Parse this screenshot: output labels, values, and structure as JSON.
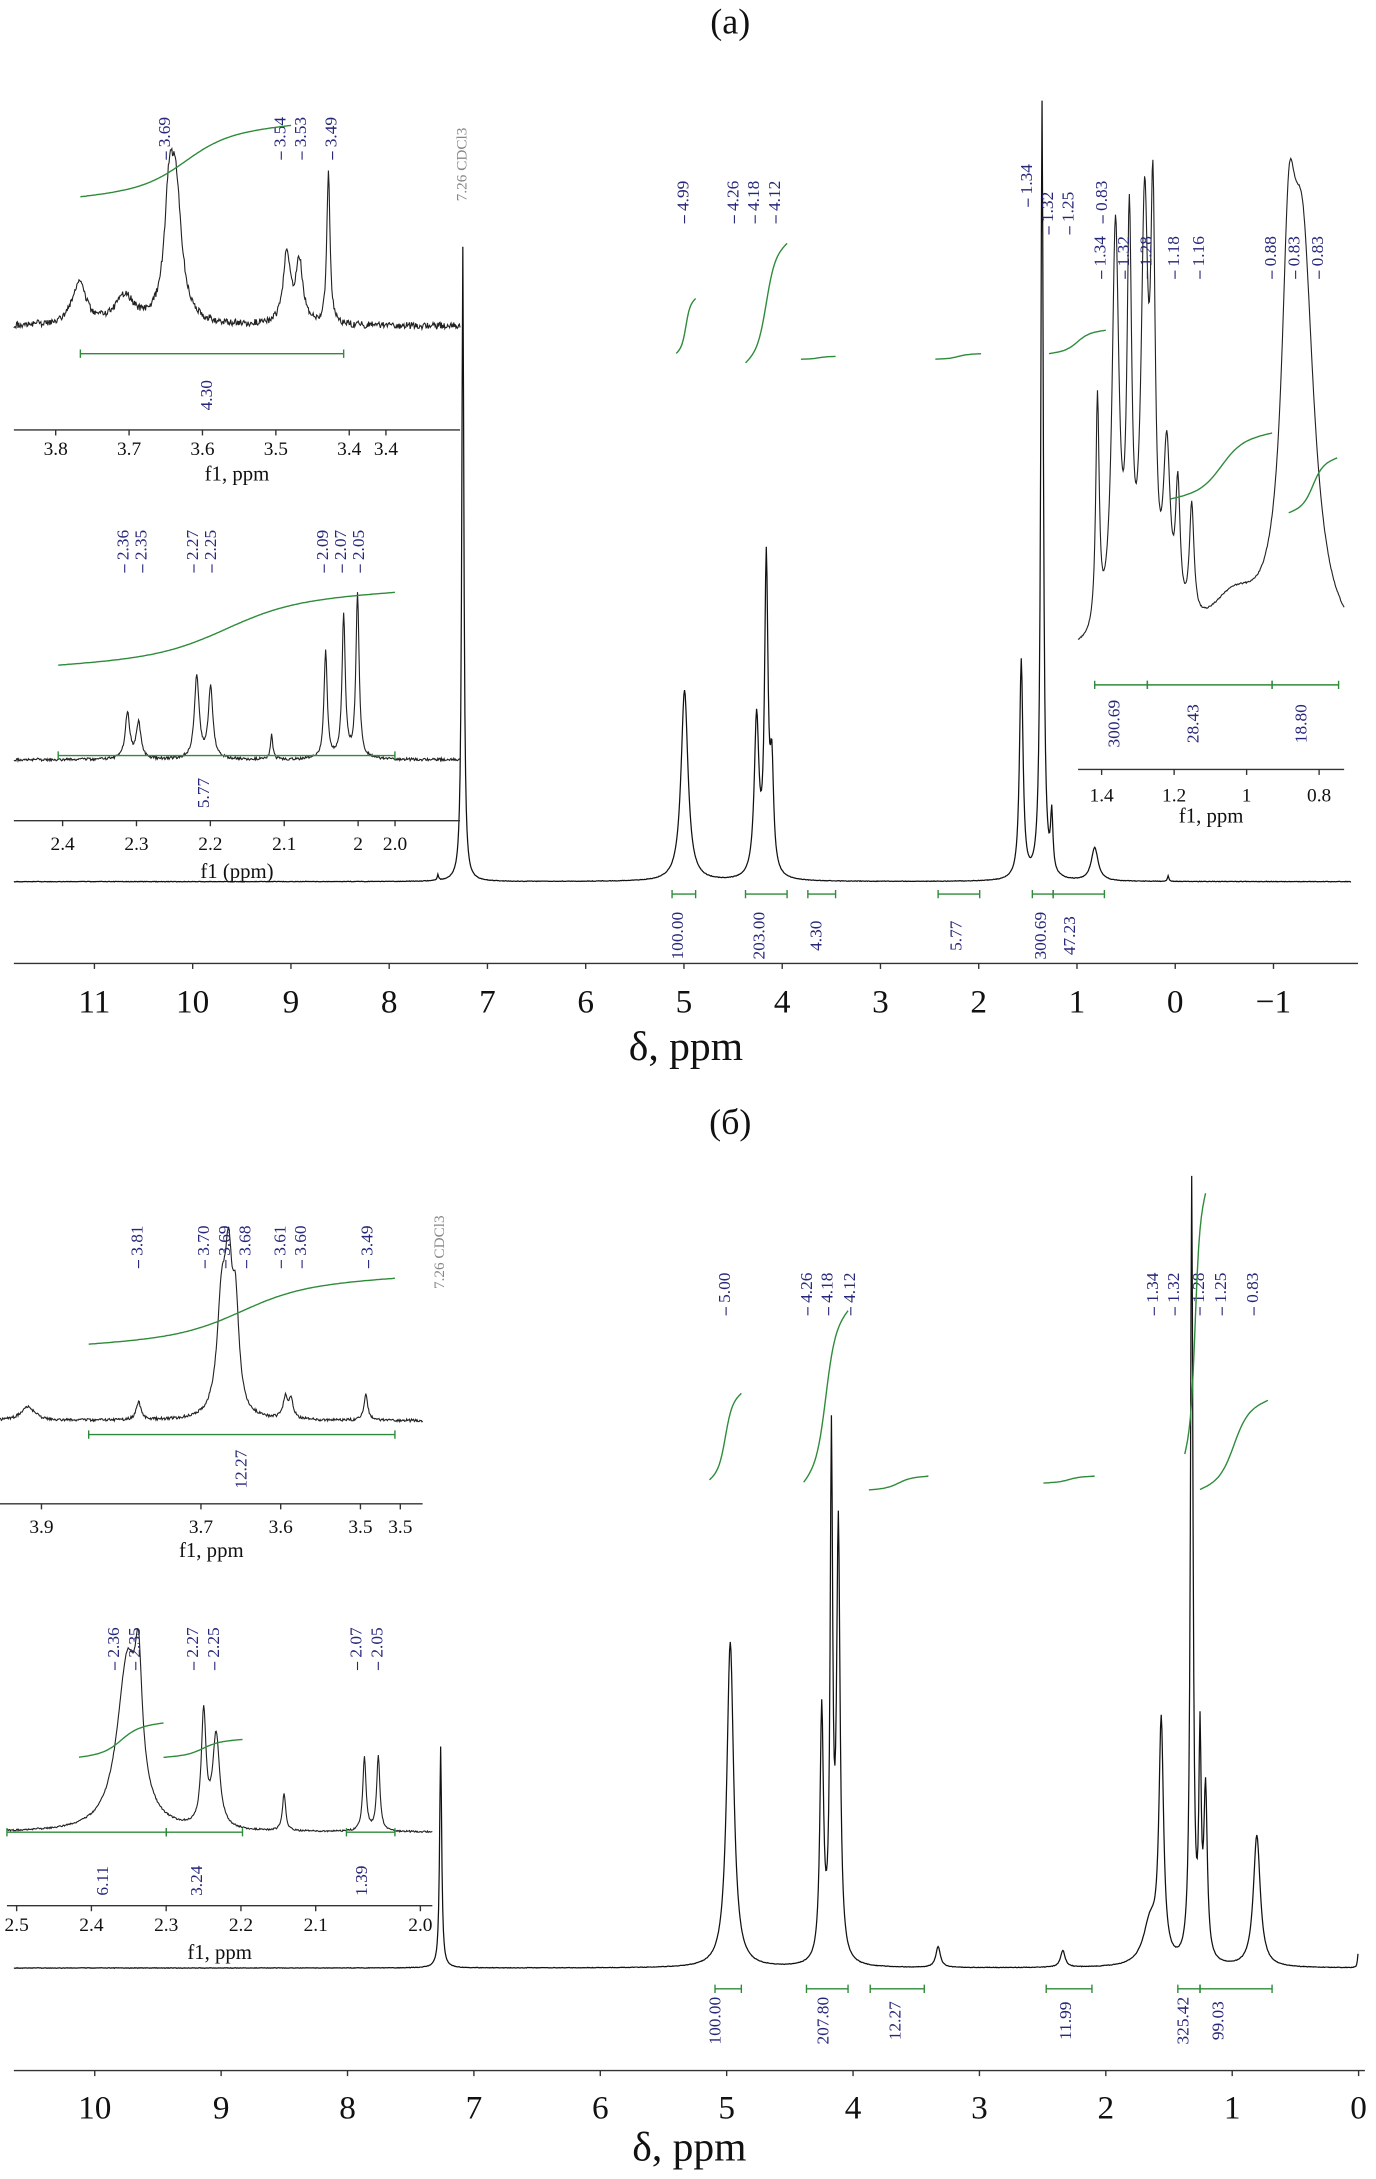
{
  "panels": [
    {
      "title": "(a)",
      "reference": "7.26 CDCl3",
      "x_label": "δ, ppm",
      "xlim": [
        11.82,
        -1.86
      ],
      "xticks": [
        11,
        10,
        9,
        8,
        7,
        6,
        5,
        4,
        3,
        2,
        1,
        0,
        {
          "value": -1,
          "label": "−1"
        }
      ],
      "peak_labels": [
        "4.99",
        "4.26",
        "4.18",
        "4.12",
        "1.34",
        "1.32",
        "1.25",
        "0.83"
      ],
      "integral_labels": [
        "100.00",
        "203.00",
        "4.30",
        "5.77",
        "300.69",
        "47.23"
      ],
      "insets": [
        {
          "x_label": "f1, ppm",
          "xlim": [
            3.857,
            3.249
          ],
          "xticks": [
            3.8,
            3.7,
            3.6,
            3.5,
            3.4,
            {
              "value": 3.35,
              "label": "3.4"
            }
          ],
          "peak_labels": [
            "3.69",
            "3.54",
            "3.53",
            "3.49"
          ],
          "integral_labels": [
            "4.30"
          ]
        },
        {
          "x_label": "f1 (ppm)",
          "xlim": [
            2.466,
            1.862
          ],
          "xticks": [
            2.4,
            2.3,
            2.2,
            2.1,
            2.0,
            {
              "value": 1.95,
              "label": "2.0"
            }
          ],
          "peak_labels": [
            "2.36",
            "2.35",
            "2.27",
            "2.25",
            "2.09",
            "2.07",
            "2.05"
          ],
          "integral_labels": [
            "5.77"
          ]
        },
        {
          "x_label": "f1, ppm",
          "xlim": [
            1.465,
            0.731
          ],
          "xticks": [
            1.4,
            1.2,
            1.0,
            0.8
          ],
          "peak_labels": [
            "1.34",
            "1.32",
            "1.28",
            "1.18",
            "1.16",
            "0.88",
            "0.83",
            "0.83"
          ],
          "integral_labels": [
            "300.69",
            "28.43",
            "18.80"
          ]
        }
      ]
    },
    {
      "title": "(б)",
      "reference": "7.26 CDCl3",
      "x_label": "δ, ppm",
      "xlim": [
        10.64,
        -0.05
      ],
      "xticks": [
        10,
        9,
        8,
        7,
        6,
        5,
        4,
        3,
        2,
        1,
        0
      ],
      "peak_labels": [
        "5.00",
        "4.26",
        "4.18",
        "4.12",
        "1.34",
        "1.32",
        "1.28",
        "1.25",
        "0.83"
      ],
      "integral_labels": [
        "100.00",
        "207.80",
        "12.27",
        "11.99",
        "325.42",
        "99.03"
      ],
      "insets": [
        {
          "x_label": "f1, ppm",
          "xlim": [
            3.952,
            3.422
          ],
          "xticks": [
            3.9,
            3.7,
            3.6,
            3.5,
            {
              "value": 3.45,
              "label": "3.5"
            }
          ],
          "peak_labels": [
            "3.81",
            "3.70",
            "3.69",
            "3.68",
            "3.61",
            "3.60",
            "3.49"
          ],
          "integral_labels": [
            "12.27"
          ]
        },
        {
          "x_label": "f1, ppm",
          "xlim": [
            2.513,
            1.944
          ],
          "xticks": [
            2.5,
            2.4,
            2.3,
            2.2,
            2.1,
            {
              "value": 1.96,
              "label": "2.0"
            }
          ],
          "peak_labels": [
            "2.36",
            "2.35",
            "2.27",
            "2.25",
            "2.07",
            "2.05"
          ],
          "integral_labels": [
            "6.11",
            "3.24",
            "1.39"
          ]
        }
      ]
    }
  ]
}
